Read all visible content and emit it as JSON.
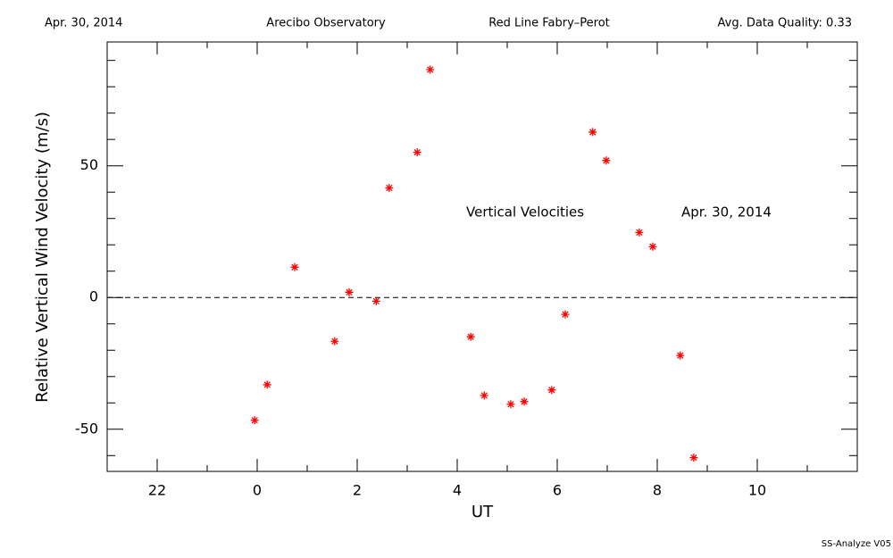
{
  "chart_data": {
    "type": "scatter",
    "header": [
      "Apr. 30, 2014",
      "Arecibo Observatory",
      "Red Line Fabry–Perot",
      "Avg. Data Quality: 0.33"
    ],
    "x_label": "UT",
    "y_label": "Relative Vertical Wind Velocity (m/s)",
    "annotations": [
      "Vertical Velocities",
      "Apr. 30, 2014"
    ],
    "footer": "SS-Analyze V05",
    "color": "#ff0000",
    "marker": "asterisk",
    "reference_line": 0,
    "x": [
      -0.05,
      0.2,
      0.75,
      1.55,
      1.84,
      2.38,
      2.64,
      3.2,
      3.46,
      4.27,
      4.54,
      5.07,
      5.34,
      5.89,
      6.16,
      6.71,
      6.98,
      7.64,
      7.91,
      8.46,
      8.73
    ],
    "values": [
      -46.6,
      -33.1,
      11.5,
      -16.6,
      2.0,
      -1.4,
      41.6,
      55.1,
      86.5,
      -14.9,
      -37.2,
      -40.5,
      -39.5,
      -35.1,
      -6.4,
      62.8,
      52.0,
      24.7,
      19.3,
      -22.0,
      -60.8
    ],
    "xlim": [
      -3,
      12
    ],
    "xticks": [
      {
        "value": -2,
        "label": "22"
      },
      0,
      2,
      4,
      6,
      8,
      10
    ],
    "xticks_minor": [
      -3,
      -1,
      1,
      3,
      5,
      7,
      9,
      11
    ],
    "ylim": [
      -66,
      97
    ],
    "yticks": [
      -50,
      0,
      50
    ],
    "yticks_minor": [
      -60,
      -40,
      -30,
      -20,
      -10,
      10,
      20,
      30,
      40,
      60,
      70,
      80,
      90
    ]
  }
}
